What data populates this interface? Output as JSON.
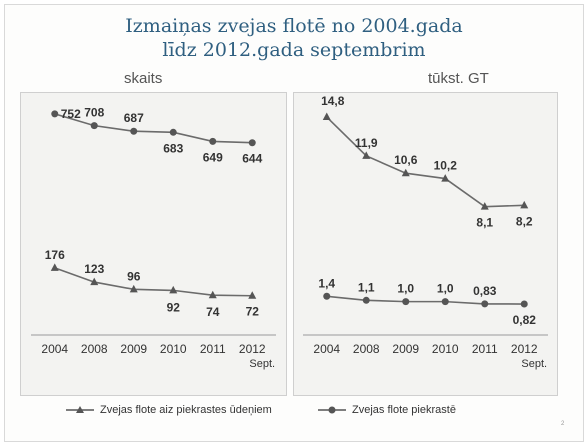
{
  "title_line1": "Izmaiņas zvejas flotē no 2004.gada",
  "title_line2": "līdz 2012.gada septembrim",
  "page_number": "2",
  "legend": {
    "outside": "Zvejas flote aiz piekrastes ūdeņiem",
    "coastal": "Zvejas flote piekrastē"
  },
  "chart_data": [
    {
      "type": "line",
      "title": "skaits",
      "categories": [
        "2004",
        "2008",
        "2009",
        "2010",
        "2011",
        "2012\nSept."
      ],
      "series": [
        {
          "name": "Zvejas flote aiz piekrastes ūdeņiem",
          "marker": "triangle",
          "values": [
            176,
            123,
            96,
            92,
            74,
            72
          ],
          "labels": [
            "176",
            "123",
            "96",
            "92",
            "74",
            "72"
          ]
        },
        {
          "name": "Zvejas flote piekrastē",
          "marker": "circle",
          "values": [
            752,
            708,
            687,
            683,
            649,
            644
          ],
          "labels": [
            "752",
            "708",
            "687",
            "683",
            "649",
            "644"
          ]
        }
      ],
      "ylim": [
        0,
        800
      ]
    },
    {
      "type": "line",
      "title": "tūkst. GT",
      "categories": [
        "2004",
        "2008",
        "2009",
        "2010",
        "2011",
        "2012\nSept."
      ],
      "series": [
        {
          "name": "Zvejas flote aiz piekrastes ūdeņiem",
          "marker": "triangle",
          "values": [
            14.8,
            11.9,
            10.6,
            10.2,
            8.1,
            8.2
          ],
          "labels": [
            "14,8",
            "11,9",
            "10,6",
            "10,2",
            "8,1",
            "8,2"
          ]
        },
        {
          "name": "Zvejas flote piekrastē",
          "marker": "circle",
          "values": [
            1.4,
            1.1,
            1.0,
            1.0,
            0.83,
            0.82
          ],
          "labels": [
            "1,4",
            "1,1",
            "1,0",
            "1,0",
            "0,83",
            "0,82"
          ]
        }
      ],
      "ylim": [
        0,
        16
      ]
    }
  ]
}
